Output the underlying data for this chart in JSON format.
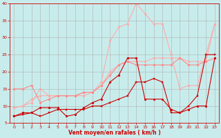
{
  "background_color": "#c8ecec",
  "grid_color": "#b0b0b0",
  "xlabel": "Vent moyen/en rafales ( km/h )",
  "xlabel_color": "#cc0000",
  "tick_color": "#cc0000",
  "x_ticks": [
    0,
    1,
    2,
    3,
    4,
    5,
    6,
    7,
    8,
    9,
    10,
    11,
    12,
    13,
    14,
    15,
    16,
    17,
    18,
    19,
    20,
    21,
    22,
    23
  ],
  "ylim": [
    5,
    40
  ],
  "xlim": [
    -0.5,
    23.5
  ],
  "yticks": [
    5,
    10,
    15,
    20,
    25,
    30,
    35,
    40
  ],
  "lines": [
    {
      "x": [
        0,
        1,
        2,
        3,
        4,
        5,
        6,
        7,
        8,
        9,
        10,
        11,
        12,
        13,
        14,
        15,
        16,
        17,
        18,
        19,
        20,
        21,
        22,
        23
      ],
      "y": [
        9.5,
        10,
        11,
        15,
        13,
        13,
        13,
        13,
        13,
        14,
        16,
        20,
        22,
        23,
        23,
        23,
        24,
        24,
        24,
        24,
        23,
        23,
        23,
        34
      ],
      "color": "#ffaaaa",
      "lw": 0.8,
      "marker": "o",
      "ms": 2.0,
      "zorder": 1
    },
    {
      "x": [
        0,
        1,
        2,
        3,
        4,
        5,
        6,
        7,
        8,
        9,
        10,
        11,
        12,
        13,
        14,
        15,
        16,
        17,
        18,
        19,
        20,
        21,
        22,
        23
      ],
      "y": [
        9.5,
        10,
        12,
        13,
        13,
        13,
        13,
        13,
        14,
        14,
        17,
        29,
        33,
        34,
        40,
        37,
        34,
        34,
        25,
        15,
        16,
        16,
        25,
        34
      ],
      "color": "#ffaaaa",
      "lw": 0.8,
      "marker": "o",
      "ms": 2.0,
      "zorder": 1
    },
    {
      "x": [
        0,
        1,
        2,
        3,
        4,
        5,
        6,
        7,
        8,
        9,
        10,
        11,
        12,
        13,
        14,
        15,
        16,
        17,
        18,
        19,
        20,
        21,
        22,
        23
      ],
      "y": [
        15,
        15,
        16,
        11,
        12,
        13,
        13,
        13,
        14,
        14,
        16,
        19,
        22,
        23,
        22,
        22,
        22,
        22,
        22,
        24,
        22,
        22,
        23,
        24
      ],
      "color": "#ff8888",
      "lw": 0.8,
      "marker": "o",
      "ms": 2.0,
      "zorder": 2
    },
    {
      "x": [
        0,
        1,
        2,
        3,
        4,
        5,
        6,
        7,
        8,
        9,
        10,
        11,
        12,
        13,
        14,
        15,
        16,
        17,
        18,
        19,
        20,
        21,
        22,
        23
      ],
      "y": [
        7,
        8,
        8,
        9.5,
        9.5,
        9.5,
        7,
        7.5,
        9.5,
        11,
        12,
        17,
        19,
        24,
        24,
        12,
        12,
        12,
        9,
        8,
        9,
        10,
        10,
        24
      ],
      "color": "#cc0000",
      "lw": 0.8,
      "marker": "o",
      "ms": 2.0,
      "zorder": 3
    },
    {
      "x": [
        0,
        1,
        2,
        3,
        4,
        5,
        6,
        7,
        8,
        9,
        10,
        11,
        12,
        13,
        14,
        15,
        16,
        17,
        18,
        19,
        20,
        21,
        22,
        23
      ],
      "y": [
        7,
        7.5,
        8,
        7,
        8,
        9,
        9,
        9,
        9,
        10,
        10,
        11,
        12,
        13,
        17,
        17,
        18,
        17,
        8,
        8,
        10,
        13,
        25,
        25
      ],
      "color": "#cc0000",
      "lw": 0.8,
      "marker": "s",
      "ms": 2.0,
      "zorder": 4
    }
  ]
}
